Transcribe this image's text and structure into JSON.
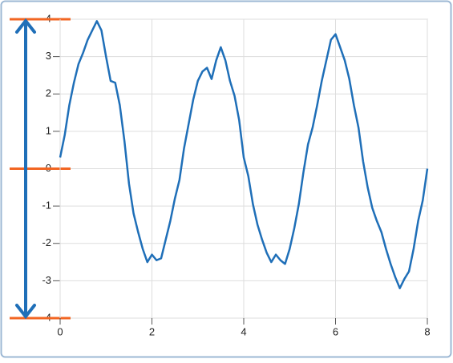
{
  "chart_data": {
    "type": "line",
    "x": [
      0,
      0.1,
      0.2,
      0.3,
      0.4,
      0.5,
      0.6,
      0.7,
      0.8,
      0.9,
      1,
      1.1,
      1.2,
      1.3,
      1.4,
      1.5,
      1.6,
      1.7,
      1.8,
      1.9,
      2,
      2.1,
      2.2,
      2.3,
      2.4,
      2.5,
      2.6,
      2.7,
      2.8,
      2.9,
      3,
      3.1,
      3.2,
      3.3,
      3.4,
      3.5,
      3.6,
      3.7,
      3.8,
      3.9,
      4,
      4.1,
      4.2,
      4.3,
      4.4,
      4.5,
      4.6,
      4.7,
      4.8,
      4.9,
      5,
      5.1,
      5.2,
      5.3,
      5.4,
      5.5,
      5.6,
      5.7,
      5.8,
      5.9,
      6,
      6.1,
      6.2,
      6.3,
      6.4,
      6.5,
      6.6,
      6.7,
      6.8,
      6.9,
      7,
      7.1,
      7.2,
      7.3,
      7.4,
      7.5,
      7.6,
      7.7,
      7.8,
      7.9,
      8
    ],
    "series": [
      {
        "color": "#1f6fb8",
        "values": [
          0.3,
          0.9,
          1.7,
          2.3,
          2.8,
          3.1,
          3.45,
          3.7,
          3.95,
          3.7,
          3.0,
          2.35,
          2.3,
          1.7,
          0.75,
          -0.4,
          -1.2,
          -1.7,
          -2.15,
          -2.5,
          -2.3,
          -2.45,
          -2.4,
          -1.9,
          -1.4,
          -0.8,
          -0.3,
          0.55,
          1.2,
          1.85,
          2.35,
          2.6,
          2.7,
          2.4,
          2.9,
          3.25,
          2.9,
          2.35,
          1.95,
          1.3,
          0.3,
          -0.2,
          -0.95,
          -1.5,
          -1.9,
          -2.25,
          -2.5,
          -2.3,
          -2.45,
          -2.55,
          -2.15,
          -1.6,
          -0.95,
          -0.1,
          0.65,
          1.1,
          1.7,
          2.35,
          2.9,
          3.45,
          3.6,
          3.25,
          2.9,
          2.4,
          1.7,
          1.1,
          0.2,
          -0.5,
          -1.05,
          -1.4,
          -1.7,
          -2.15,
          -2.55,
          -2.9,
          -3.2,
          -2.95,
          -2.75,
          -2.15,
          -1.4,
          -0.85,
          0
        ]
      }
    ],
    "xlim": [
      0,
      8
    ],
    "xticks": [
      0,
      2,
      4,
      6,
      8
    ],
    "ylim": [
      -4,
      4
    ],
    "yticks": [
      -4,
      -3,
      -2,
      -1,
      0,
      1,
      2,
      3,
      4
    ],
    "grid": true,
    "marker_color": "#f26522",
    "arrow_color": "#1f6fb8"
  }
}
